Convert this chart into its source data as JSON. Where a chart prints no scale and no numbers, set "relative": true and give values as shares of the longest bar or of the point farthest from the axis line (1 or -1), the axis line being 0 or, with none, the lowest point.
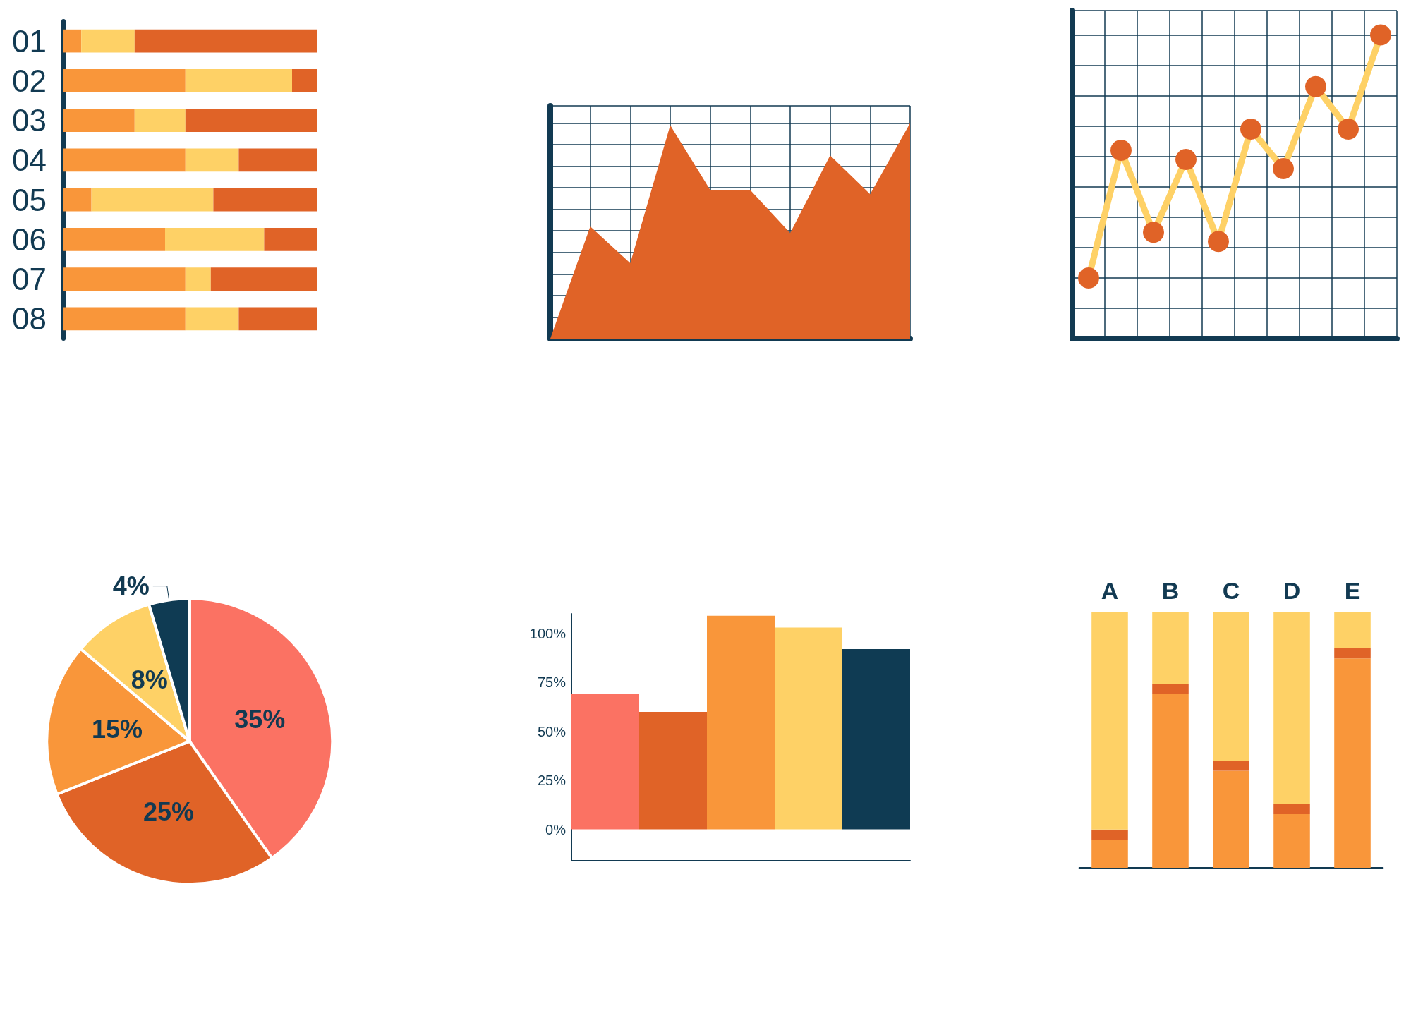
{
  "chart_data": [
    {
      "type": "bar",
      "orientation": "horizontal",
      "stacked": true,
      "relative": true,
      "categories": [
        "01",
        "02",
        "03",
        "04",
        "05",
        "06",
        "07",
        "08"
      ],
      "series": [
        {
          "color": "#f9963a",
          "values": [
            0.07,
            0.48,
            0.28,
            0.48,
            0.11,
            0.4,
            0.48,
            0.48
          ]
        },
        {
          "color": "#fed166",
          "values": [
            0.21,
            0.42,
            0.2,
            0.21,
            0.48,
            0.39,
            0.1,
            0.21
          ]
        },
        {
          "color": "#e06327",
          "values": [
            0.72,
            0.1,
            0.52,
            0.31,
            0.41,
            0.21,
            0.42,
            0.31
          ]
        }
      ]
    },
    {
      "type": "area",
      "relative": true,
      "categories": [
        null,
        null,
        null,
        null,
        null,
        null,
        null,
        null,
        null,
        null
      ],
      "grid": true,
      "series": [
        {
          "color": "#e06327",
          "values": [
            0,
            0.52,
            0.35,
            0.99,
            0.69,
            0.69,
            0.49,
            0.85,
            0.67,
            1
          ]
        }
      ]
    },
    {
      "type": "line",
      "relative": true,
      "categories": [
        null,
        null,
        null,
        null,
        null,
        null,
        null,
        null,
        null,
        null
      ],
      "grid": true,
      "marker": "circle",
      "series": [
        {
          "color": "#fed166",
          "colors": [
            "#e06327",
            "#e06327",
            "#e06327",
            "#e06327",
            "#e06327",
            "#e06327",
            "#e06327",
            "#e06327",
            "#e06327",
            "#e06327"
          ],
          "values": [
            0.2,
            0.62,
            0.35,
            0.59,
            0.32,
            0.69,
            0.56,
            0.83,
            0.69,
            1
          ]
        }
      ]
    },
    {
      "type": "pie",
      "categories": [
        null,
        null,
        null,
        null,
        null
      ],
      "values": [
        35,
        25,
        15,
        8,
        4
      ],
      "colors": [
        "#fb7263",
        "#e06327",
        "#f9963a",
        "#fed166",
        "#0f3b53"
      ],
      "value_labels": [
        "35%",
        "25%",
        "15%",
        "8%",
        "4%"
      ]
    },
    {
      "type": "bar",
      "categories": [
        null,
        null,
        null,
        null,
        null
      ],
      "values": [
        69,
        60,
        109,
        103,
        92
      ],
      "colors": [
        "#fb7263",
        "#e06327",
        "#f9963a",
        "#fed166",
        "#0f3b53"
      ],
      "ylim": [
        -16,
        110
      ],
      "yticks": [
        {
          "value": 0,
          "label": "0%"
        },
        {
          "value": 25,
          "label": "25%"
        },
        {
          "value": 50,
          "label": "50%"
        },
        {
          "value": 75,
          "label": "75%"
        },
        {
          "value": 100,
          "label": "100%"
        }
      ]
    },
    {
      "type": "bar",
      "stacked": true,
      "relative": true,
      "categories": [
        "A",
        "B",
        "C",
        "D",
        "E"
      ],
      "series": [
        {
          "color": "#f9963a",
          "values": [
            0.11,
            0.68,
            0.38,
            0.21,
            0.82
          ]
        },
        {
          "color": "#e06327",
          "values": [
            0.04,
            0.04,
            0.04,
            0.04,
            0.04
          ]
        },
        {
          "color": "#fed166",
          "values": [
            0.85,
            0.28,
            0.58,
            0.75,
            0.14
          ]
        }
      ]
    }
  ]
}
